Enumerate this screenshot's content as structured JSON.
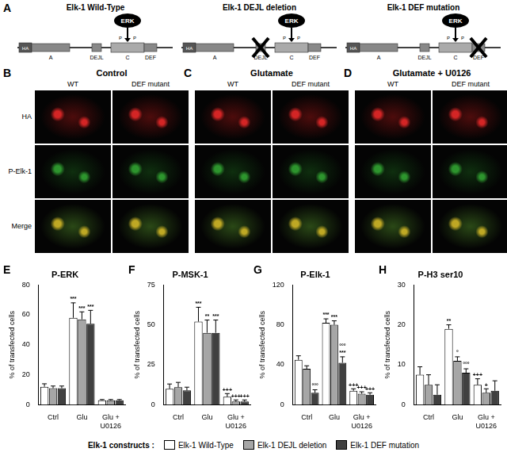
{
  "schematics": {
    "letter": "A",
    "domains": [
      "HA",
      "A",
      "DEJL",
      "C",
      "DEF"
    ],
    "kinase": "ERK",
    "phospho": "P",
    "constructs": [
      {
        "title": "Elk-1 Wild-Type",
        "deleted": null
      },
      {
        "title": "Elk-1 DEJL deletion",
        "deleted": "DEJL"
      },
      {
        "title": "Elk-1 DEF mutation",
        "deleted": "DEF"
      }
    ]
  },
  "micrographs": {
    "groups": [
      {
        "letter": "B",
        "title": "Control"
      },
      {
        "letter": "C",
        "title": "Glutamate"
      },
      {
        "letter": "D",
        "title": "Glutamate + U0126"
      }
    ],
    "columns": [
      "WT",
      "DEF mutant"
    ],
    "rows": [
      "HA",
      "P-Elk-1",
      "Merge"
    ]
  },
  "chart_data": [
    {
      "type": "bar",
      "letter": "E",
      "title": "P-ERK",
      "y_label": "% of transfected cells",
      "categories": [
        "Ctrl",
        "Glu",
        "Glu + U0126"
      ],
      "ylim": [
        0,
        80
      ],
      "yticks": [
        0,
        20,
        40,
        60,
        80
      ],
      "grid": false,
      "series": [
        {
          "name": "Elk-1 Wild-Type",
          "color": "#ffffff",
          "values": [
            12,
            58,
            3
          ],
          "errors": [
            2,
            10,
            0.5
          ],
          "annotations": [
            [],
            [
              "***"
            ],
            []
          ]
        },
        {
          "name": "Elk-1 DEJL deletion",
          "color": "#a6a6a6",
          "values": [
            11,
            57,
            3
          ],
          "errors": [
            1.5,
            5,
            0.5
          ],
          "annotations": [
            [],
            [
              "***"
            ],
            []
          ]
        },
        {
          "name": "Elk-1 DEF mutation",
          "color": "#404040",
          "values": [
            11,
            54,
            3
          ],
          "errors": [
            1.5,
            9,
            0.5
          ],
          "annotations": [
            [],
            [
              "***"
            ],
            []
          ]
        }
      ]
    },
    {
      "type": "bar",
      "letter": "F",
      "title": "P-MSK-1",
      "y_label": "% of transfected cells",
      "categories": [
        "Ctrl",
        "Glu",
        "Glu + U0126"
      ],
      "ylim": [
        0,
        75
      ],
      "yticks": [
        0,
        25,
        50,
        75
      ],
      "grid": false,
      "series": [
        {
          "name": "Elk-1 Wild-Type",
          "color": "#ffffff",
          "values": [
            10,
            52,
            5
          ],
          "errors": [
            3,
            9,
            2
          ],
          "annotations": [
            [],
            [
              "***"
            ],
            [
              "+++"
            ]
          ]
        },
        {
          "name": "Elk-1 DEJL deletion",
          "color": "#a6a6a6",
          "values": [
            11,
            45,
            2
          ],
          "errors": [
            3,
            8,
            1
          ],
          "annotations": [
            [],
            [
              "**"
            ],
            [
              "+++"
            ]
          ]
        },
        {
          "name": "Elk-1 DEF mutation",
          "color": "#404040",
          "values": [
            9,
            45,
            2
          ],
          "errors": [
            2,
            8,
            1
          ],
          "annotations": [
            [],
            [
              "***"
            ],
            [
              "+++"
            ]
          ]
        }
      ]
    },
    {
      "type": "bar",
      "letter": "G",
      "title": "P-Elk-1",
      "y_label": "% of transfected cells",
      "categories": [
        "Ctrl",
        "Glu",
        "Glu + U0126"
      ],
      "ylim": [
        0,
        120
      ],
      "yticks": [
        0,
        40,
        80,
        120
      ],
      "grid": false,
      "series": [
        {
          "name": "Elk-1 Wild-Type",
          "color": "#ffffff",
          "values": [
            45,
            82,
            14
          ],
          "errors": [
            4,
            4,
            2
          ],
          "annotations": [
            [],
            [
              "***"
            ],
            [
              "+++"
            ]
          ]
        },
        {
          "name": "Elk-1 DEJL deletion",
          "color": "#a6a6a6",
          "values": [
            36,
            80,
            11
          ],
          "errors": [
            3,
            4,
            2
          ],
          "annotations": [
            [],
            [
              "***"
            ],
            [
              "+++"
            ]
          ]
        },
        {
          "name": "Elk-1 DEF mutation",
          "color": "#404040",
          "values": [
            12,
            42,
            10
          ],
          "errors": [
            3,
            6,
            2
          ],
          "annotations": [
            [
              "°°°"
            ],
            [
              "***",
              "°°°"
            ],
            [
              "+++"
            ]
          ]
        }
      ]
    },
    {
      "type": "bar",
      "letter": "H",
      "title": "P-H3 ser10",
      "y_label": "% of transfected cells",
      "categories": [
        "Ctrl",
        "Glu",
        "Glu + U0126"
      ],
      "ylim": [
        0,
        30
      ],
      "yticks": [
        0,
        10,
        20,
        30
      ],
      "grid": false,
      "series": [
        {
          "name": "Elk-1 Wild-Type",
          "color": "#ffffff",
          "values": [
            7.5,
            19,
            5
          ],
          "errors": [
            2,
            1,
            1.5
          ],
          "annotations": [
            [],
            [
              "**"
            ],
            [
              "+++"
            ]
          ]
        },
        {
          "name": "Elk-1 DEJL deletion",
          "color": "#a6a6a6",
          "values": [
            5,
            11,
            3
          ],
          "errors": [
            2.5,
            1,
            1
          ],
          "annotations": [
            [],
            [
              "°"
            ],
            [
              "+"
            ]
          ]
        },
        {
          "name": "Elk-1 DEF mutation",
          "color": "#404040",
          "values": [
            2.5,
            8,
            3.5
          ],
          "errors": [
            2.5,
            1,
            2.5
          ],
          "annotations": [
            [],
            [
              "°°°"
            ],
            []
          ]
        }
      ]
    }
  ],
  "legend_title": "Elk-1 constructs :"
}
